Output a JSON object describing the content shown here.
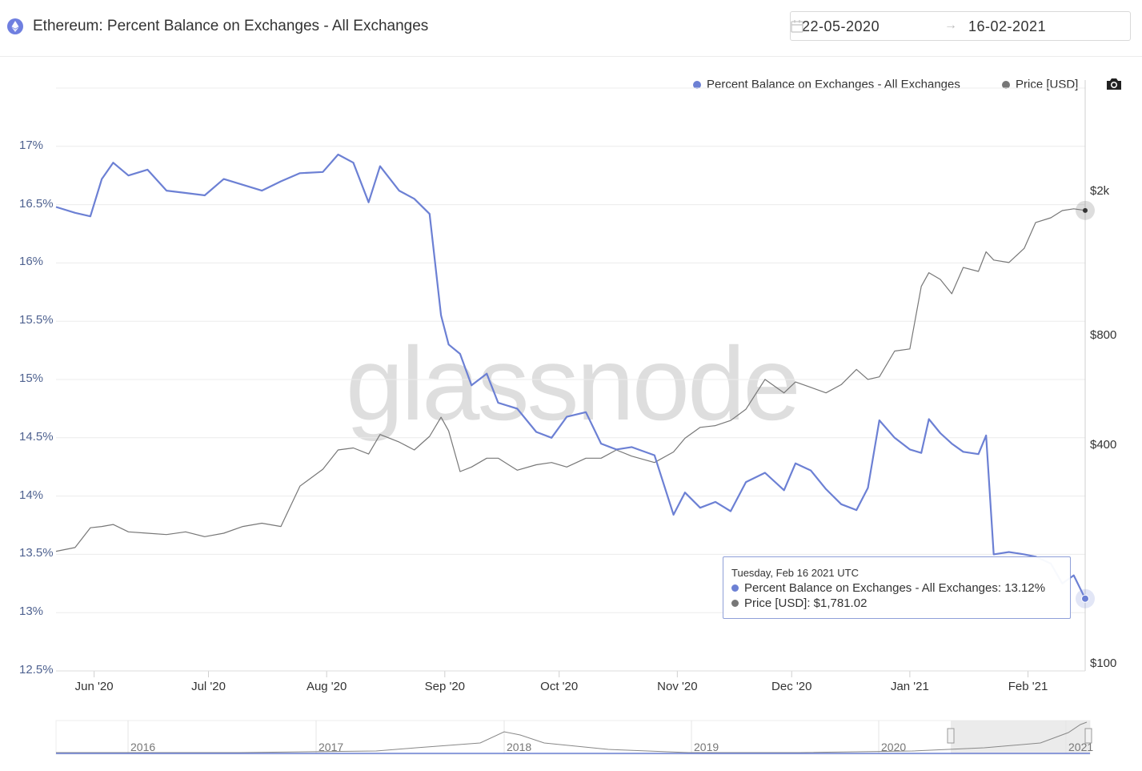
{
  "header": {
    "title": "Ethereum: Percent Balance on Exchanges - All Exchanges",
    "date_start": "22-05-2020",
    "date_arrow": "→",
    "date_end": "16-02-2021"
  },
  "legend": {
    "eth_label": "Percent Balance on Exchanges - All Exchanges",
    "price_label": "Price [USD]"
  },
  "watermark": "glassnode",
  "tooltip": {
    "date": "Tuesday, Feb 16 2021 UTC",
    "eth_line": "Percent Balance on Exchanges - All Exchanges: 13.12%",
    "price_line": "Price [USD]: $1,781.02"
  },
  "colors": {
    "eth": "#6c80d4",
    "price": "#777777",
    "grid": "#ececec"
  },
  "navigator": {
    "labels": [
      "2016",
      "2017",
      "2018",
      "2019",
      "2020",
      "2021"
    ]
  },
  "chart_data": {
    "type": "line",
    "title": "Ethereum: Percent Balance on Exchanges - All Exchanges",
    "x_range": [
      "2020-05-22",
      "2021-02-16"
    ],
    "x_tick_labels": [
      "Jun '20",
      "Jul '20",
      "Aug '20",
      "Sep '20",
      "Oct '20",
      "Nov '20",
      "Dec '20",
      "Jan '21",
      "Feb '21"
    ],
    "y_left": {
      "tick_labels": [
        "12.5%",
        "13%",
        "13.5%",
        "14%",
        "14.5%",
        "15%",
        "15.5%",
        "16%",
        "16.5%",
        "17%"
      ],
      "range": [
        12.5,
        17.5
      ]
    },
    "y_right": {
      "tick_labels": [
        "$100",
        "$400",
        "$800",
        "$2k"
      ],
      "scale": "log"
    },
    "grid": true,
    "legend_position": "top-right",
    "series": [
      {
        "name": "Percent Balance on Exchanges - All Exchanges",
        "axis": "left",
        "x": [
          "2020-05-22",
          "2020-05-27",
          "2020-05-31",
          "2020-06-03",
          "2020-06-06",
          "2020-06-10",
          "2020-06-15",
          "2020-06-20",
          "2020-06-25",
          "2020-06-30",
          "2020-07-05",
          "2020-07-10",
          "2020-07-15",
          "2020-07-20",
          "2020-07-25",
          "2020-07-31",
          "2020-08-04",
          "2020-08-08",
          "2020-08-12",
          "2020-08-15",
          "2020-08-20",
          "2020-08-24",
          "2020-08-28",
          "2020-08-31",
          "2020-09-02",
          "2020-09-05",
          "2020-09-08",
          "2020-09-12",
          "2020-09-15",
          "2020-09-20",
          "2020-09-25",
          "2020-09-29",
          "2020-10-03",
          "2020-10-08",
          "2020-10-12",
          "2020-10-16",
          "2020-10-20",
          "2020-10-26",
          "2020-10-31",
          "2020-11-03",
          "2020-11-07",
          "2020-11-11",
          "2020-11-15",
          "2020-11-19",
          "2020-11-24",
          "2020-11-29",
          "2020-12-02",
          "2020-12-06",
          "2020-12-10",
          "2020-12-14",
          "2020-12-18",
          "2020-12-21",
          "2020-12-24",
          "2020-12-28",
          "2021-01-01",
          "2021-01-04",
          "2021-01-06",
          "2021-01-09",
          "2021-01-12",
          "2021-01-15",
          "2021-01-19",
          "2021-01-21",
          "2021-01-23",
          "2021-01-27",
          "2021-01-31",
          "2021-02-03",
          "2021-02-07",
          "2021-02-10",
          "2021-02-13",
          "2021-02-16"
        ],
        "values": [
          16.48,
          16.43,
          16.4,
          16.72,
          16.86,
          16.75,
          16.8,
          16.62,
          16.6,
          16.58,
          16.72,
          16.67,
          16.62,
          16.7,
          16.77,
          16.78,
          16.93,
          16.86,
          16.52,
          16.83,
          16.62,
          16.55,
          16.42,
          15.55,
          15.3,
          15.22,
          14.95,
          15.05,
          14.8,
          14.75,
          14.55,
          14.5,
          14.68,
          14.72,
          14.45,
          14.4,
          14.42,
          14.35,
          13.84,
          14.03,
          13.9,
          13.95,
          13.87,
          14.12,
          14.2,
          14.05,
          14.28,
          14.22,
          14.06,
          13.93,
          13.88,
          14.07,
          14.65,
          14.5,
          14.4,
          14.37,
          14.66,
          14.54,
          14.45,
          14.38,
          14.36,
          14.52,
          13.5,
          13.52,
          13.5,
          13.48,
          13.42,
          13.25,
          13.32,
          13.12
        ]
      },
      {
        "name": "Price [USD]",
        "axis": "right",
        "x": [
          "2020-05-22",
          "2020-05-27",
          "2020-05-31",
          "2020-06-03",
          "2020-06-06",
          "2020-06-10",
          "2020-06-15",
          "2020-06-20",
          "2020-06-25",
          "2020-06-30",
          "2020-07-05",
          "2020-07-10",
          "2020-07-15",
          "2020-07-20",
          "2020-07-25",
          "2020-07-31",
          "2020-08-04",
          "2020-08-08",
          "2020-08-12",
          "2020-08-15",
          "2020-08-20",
          "2020-08-24",
          "2020-08-28",
          "2020-08-31",
          "2020-09-02",
          "2020-09-05",
          "2020-09-08",
          "2020-09-12",
          "2020-09-15",
          "2020-09-20",
          "2020-09-25",
          "2020-09-29",
          "2020-10-03",
          "2020-10-08",
          "2020-10-12",
          "2020-10-16",
          "2020-10-20",
          "2020-10-26",
          "2020-10-31",
          "2020-11-03",
          "2020-11-07",
          "2020-11-11",
          "2020-11-15",
          "2020-11-19",
          "2020-11-24",
          "2020-11-29",
          "2020-12-02",
          "2020-12-06",
          "2020-12-10",
          "2020-12-14",
          "2020-12-18",
          "2020-12-21",
          "2020-12-24",
          "2020-12-28",
          "2021-01-01",
          "2021-01-04",
          "2021-01-06",
          "2021-01-09",
          "2021-01-12",
          "2021-01-15",
          "2021-01-19",
          "2021-01-21",
          "2021-01-23",
          "2021-01-27",
          "2021-01-31",
          "2021-02-03",
          "2021-02-07",
          "2021-02-10",
          "2021-02-13",
          "2021-02-16"
        ],
        "values": [
          205,
          210,
          238,
          240,
          243,
          232,
          230,
          228,
          232,
          225,
          230,
          240,
          245,
          240,
          310,
          345,
          390,
          395,
          380,
          430,
          410,
          390,
          425,
          480,
          440,
          340,
          350,
          370,
          370,
          343,
          355,
          360,
          350,
          370,
          370,
          390,
          375,
          360,
          385,
          420,
          450,
          455,
          470,
          505,
          610,
          560,
          600,
          580,
          560,
          590,
          650,
          610,
          620,
          730,
          740,
          1100,
          1200,
          1150,
          1050,
          1240,
          1210,
          1370,
          1300,
          1280,
          1400,
          1650,
          1700,
          1780,
          1800,
          1781.02
        ]
      }
    ]
  }
}
